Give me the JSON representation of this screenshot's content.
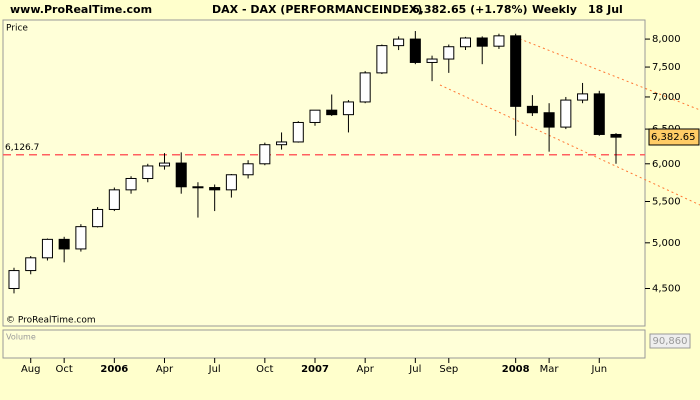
{
  "header": {
    "site": "www.ProRealTime.com",
    "instrument": "DAX - DAX (PERFORMANCEINDEX)",
    "quote": "6,382.65 (+1.78%)",
    "period": "Weekly",
    "date": "18 Jul"
  },
  "chart_data": {
    "type": "candlestick",
    "y_label": "Price",
    "copyright": "© ProRealTime.com",
    "volume_label": "Volume",
    "volume_last": "90,860",
    "log_scale": true,
    "up_color": "#ffffff",
    "down_color": "#000000",
    "categories": [
      "2005-07",
      "2005-08",
      "2005-09",
      "2005-10",
      "2005-11",
      "2005-12",
      "2006-01",
      "2006-02",
      "2006-03",
      "2006-04",
      "2006-05",
      "2006-06",
      "2006-07",
      "2006-08",
      "2006-09",
      "2006-10",
      "2006-11",
      "2006-12",
      "2007-01",
      "2007-02",
      "2007-03",
      "2007-04",
      "2007-05",
      "2007-06",
      "2007-07",
      "2007-08",
      "2007-09",
      "2007-10",
      "2007-11",
      "2007-12",
      "2008-01",
      "2008-02",
      "2008-03",
      "2008-04",
      "2008-05",
      "2008-06",
      "2008-07"
    ],
    "open": [
      4500,
      4690,
      4830,
      5040,
      4930,
      5190,
      5400,
      5650,
      5800,
      5970,
      6010,
      5690,
      5680,
      5650,
      5850,
      6000,
      6270,
      6310,
      6600,
      6790,
      6720,
      6920,
      7400,
      7880,
      8000,
      7580,
      7640,
      7860,
      8020,
      7870,
      8060,
      6850,
      6750,
      6530,
      6950,
      7050,
      6420
    ],
    "high": [
      4720,
      4850,
      5050,
      5070,
      5220,
      5430,
      5680,
      5830,
      6000,
      6150,
      6160,
      5750,
      5720,
      5860,
      6050,
      6300,
      6450,
      6620,
      6780,
      7040,
      6950,
      7430,
      7900,
      8050,
      8150,
      7700,
      7900,
      8040,
      8050,
      8100,
      8100,
      7030,
      6900,
      7000,
      7230,
      7100,
      6440
    ],
    "low": [
      4450,
      4650,
      4800,
      4780,
      4900,
      5180,
      5380,
      5600,
      5750,
      5920,
      5600,
      5300,
      5380,
      5550,
      5800,
      5980,
      6200,
      6300,
      6550,
      6700,
      6450,
      6900,
      7380,
      7800,
      7550,
      7260,
      7400,
      7800,
      7550,
      7820,
      6400,
      6700,
      6170,
      6500,
      6900,
      6400,
      6000
    ],
    "close": [
      4690,
      4830,
      5040,
      4930,
      5190,
      5400,
      5650,
      5800,
      5970,
      6010,
      5690,
      5680,
      5650,
      5850,
      6000,
      6270,
      6310,
      6600,
      6790,
      6720,
      6920,
      7400,
      7880,
      8000,
      7580,
      7640,
      7860,
      8020,
      7870,
      8060,
      6850,
      6750,
      6530,
      6950,
      7050,
      6420,
      6380
    ],
    "ylim": [
      4127,
      8360
    ],
    "yticks": [
      {
        "value": 4500,
        "label": "4,500"
      },
      {
        "value": 5000,
        "label": "5,000"
      },
      {
        "value": 5500,
        "label": "5,500"
      },
      {
        "value": 6000,
        "label": "6,000"
      },
      {
        "value": 6500,
        "label": "6,500"
      },
      {
        "value": 7000,
        "label": "7,000"
      },
      {
        "value": 7500,
        "label": "7,500"
      },
      {
        "value": 8000,
        "label": "8,000"
      }
    ],
    "xticks": [
      {
        "value": "2005-08",
        "label": "Aug"
      },
      {
        "value": "2005-10",
        "label": "Oct"
      },
      {
        "value": "2006-01",
        "label": "2006"
      },
      {
        "value": "2006-04",
        "label": "Apr"
      },
      {
        "value": "2006-07",
        "label": "Jul"
      },
      {
        "value": "2006-10",
        "label": "Oct"
      },
      {
        "value": "2007-01",
        "label": "2007"
      },
      {
        "value": "2007-04",
        "label": "Apr"
      },
      {
        "value": "2007-07",
        "label": "Jul"
      },
      {
        "value": "2007-09",
        "label": "Sep"
      },
      {
        "value": "2008-01",
        "label": "2008"
      },
      {
        "value": "2008-03",
        "label": "Mar"
      },
      {
        "value": "2008-06",
        "label": "Jun"
      }
    ],
    "hline": {
      "value": 6126.7,
      "label": "6,126.7",
      "color": "#ff6060"
    },
    "last_price": {
      "value": 6382.65,
      "label": "6,382.65"
    }
  }
}
